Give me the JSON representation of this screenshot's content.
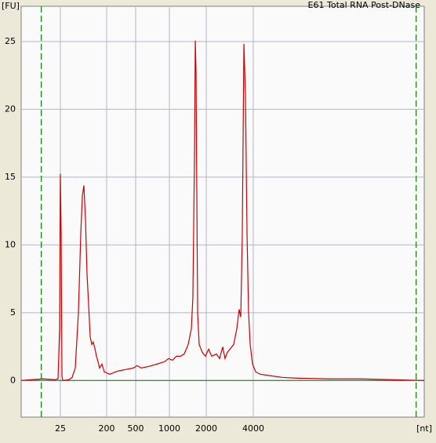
{
  "chart_data": {
    "type": "line",
    "title": "E61 Total RNA Post-DNase",
    "y_label": "[FU]",
    "x_label": "[nt]",
    "xlim": [
      19,
      69
    ],
    "ylim": [
      -2.7,
      27.6
    ],
    "xticks": [
      {
        "value": 23.86,
        "label": "25"
      },
      {
        "value": 29.6,
        "label": "200"
      },
      {
        "value": 33.2,
        "label": "500"
      },
      {
        "value": 37.39,
        "label": "1000"
      },
      {
        "value": 41.96,
        "label": "2000"
      },
      {
        "value": 47.79,
        "label": "4000"
      }
    ],
    "yticks": [
      0,
      5,
      10,
      15,
      20,
      25
    ],
    "grid": true,
    "markers": [
      21.5,
      68.0
    ],
    "marker_color": "#008000",
    "x": [
      19.0,
      20.26,
      21.72,
      23.18,
      23.57,
      23.77,
      23.86,
      23.96,
      24.06,
      24.16,
      24.93,
      25.32,
      25.71,
      26.1,
      26.39,
      26.59,
      26.78,
      26.98,
      27.17,
      27.37,
      27.56,
      27.76,
      27.95,
      28.14,
      28.34,
      28.53,
      28.73,
      29.02,
      29.31,
      29.99,
      30.97,
      31.94,
      32.91,
      33.4,
      33.88,
      34.86,
      35.83,
      36.8,
      37.29,
      37.77,
      38.26,
      38.75,
      39.23,
      39.72,
      40.11,
      40.3,
      40.5,
      40.6,
      40.69,
      40.79,
      40.89,
      41.08,
      41.47,
      41.86,
      42.25,
      42.64,
      43.22,
      43.61,
      44.0,
      44.29,
      44.58,
      44.97,
      45.36,
      45.75,
      46.04,
      46.24,
      46.43,
      46.63,
      46.82,
      47.02,
      47.21,
      47.41,
      47.7,
      48.09,
      48.67,
      49.94,
      51.39,
      53.34,
      57.23,
      61.12,
      65.01,
      69.0
    ],
    "series": [
      {
        "name": "E61 Total RNA Post-DNase",
        "color": "#cc0000",
        "values": [
          0,
          0.06,
          0.12,
          0.06,
          0.12,
          3.81,
          15.24,
          10.74,
          0.35,
          0,
          0.06,
          0.23,
          0.92,
          4.97,
          10.74,
          13.63,
          14.38,
          11.89,
          7.85,
          5.54,
          3.23,
          2.66,
          2.83,
          2.37,
          1.79,
          1.39,
          0.92,
          1.21,
          0.64,
          0.46,
          0.69,
          0.81,
          0.92,
          1.1,
          0.92,
          1.04,
          1.21,
          1.39,
          1.62,
          1.5,
          1.79,
          1.79,
          1.96,
          2.66,
          3.81,
          6.12,
          16.51,
          25.06,
          22.87,
          13.63,
          4.97,
          2.66,
          2.08,
          1.79,
          2.31,
          1.79,
          1.96,
          1.62,
          2.48,
          1.62,
          2.08,
          2.37,
          2.66,
          3.81,
          5.25,
          4.68,
          10.74,
          24.83,
          21.13,
          10.74,
          4.97,
          2.66,
          1.21,
          0.64,
          0.46,
          0.35,
          0.23,
          0.17,
          0.12,
          0.12,
          0.06,
          0
        ]
      }
    ]
  }
}
